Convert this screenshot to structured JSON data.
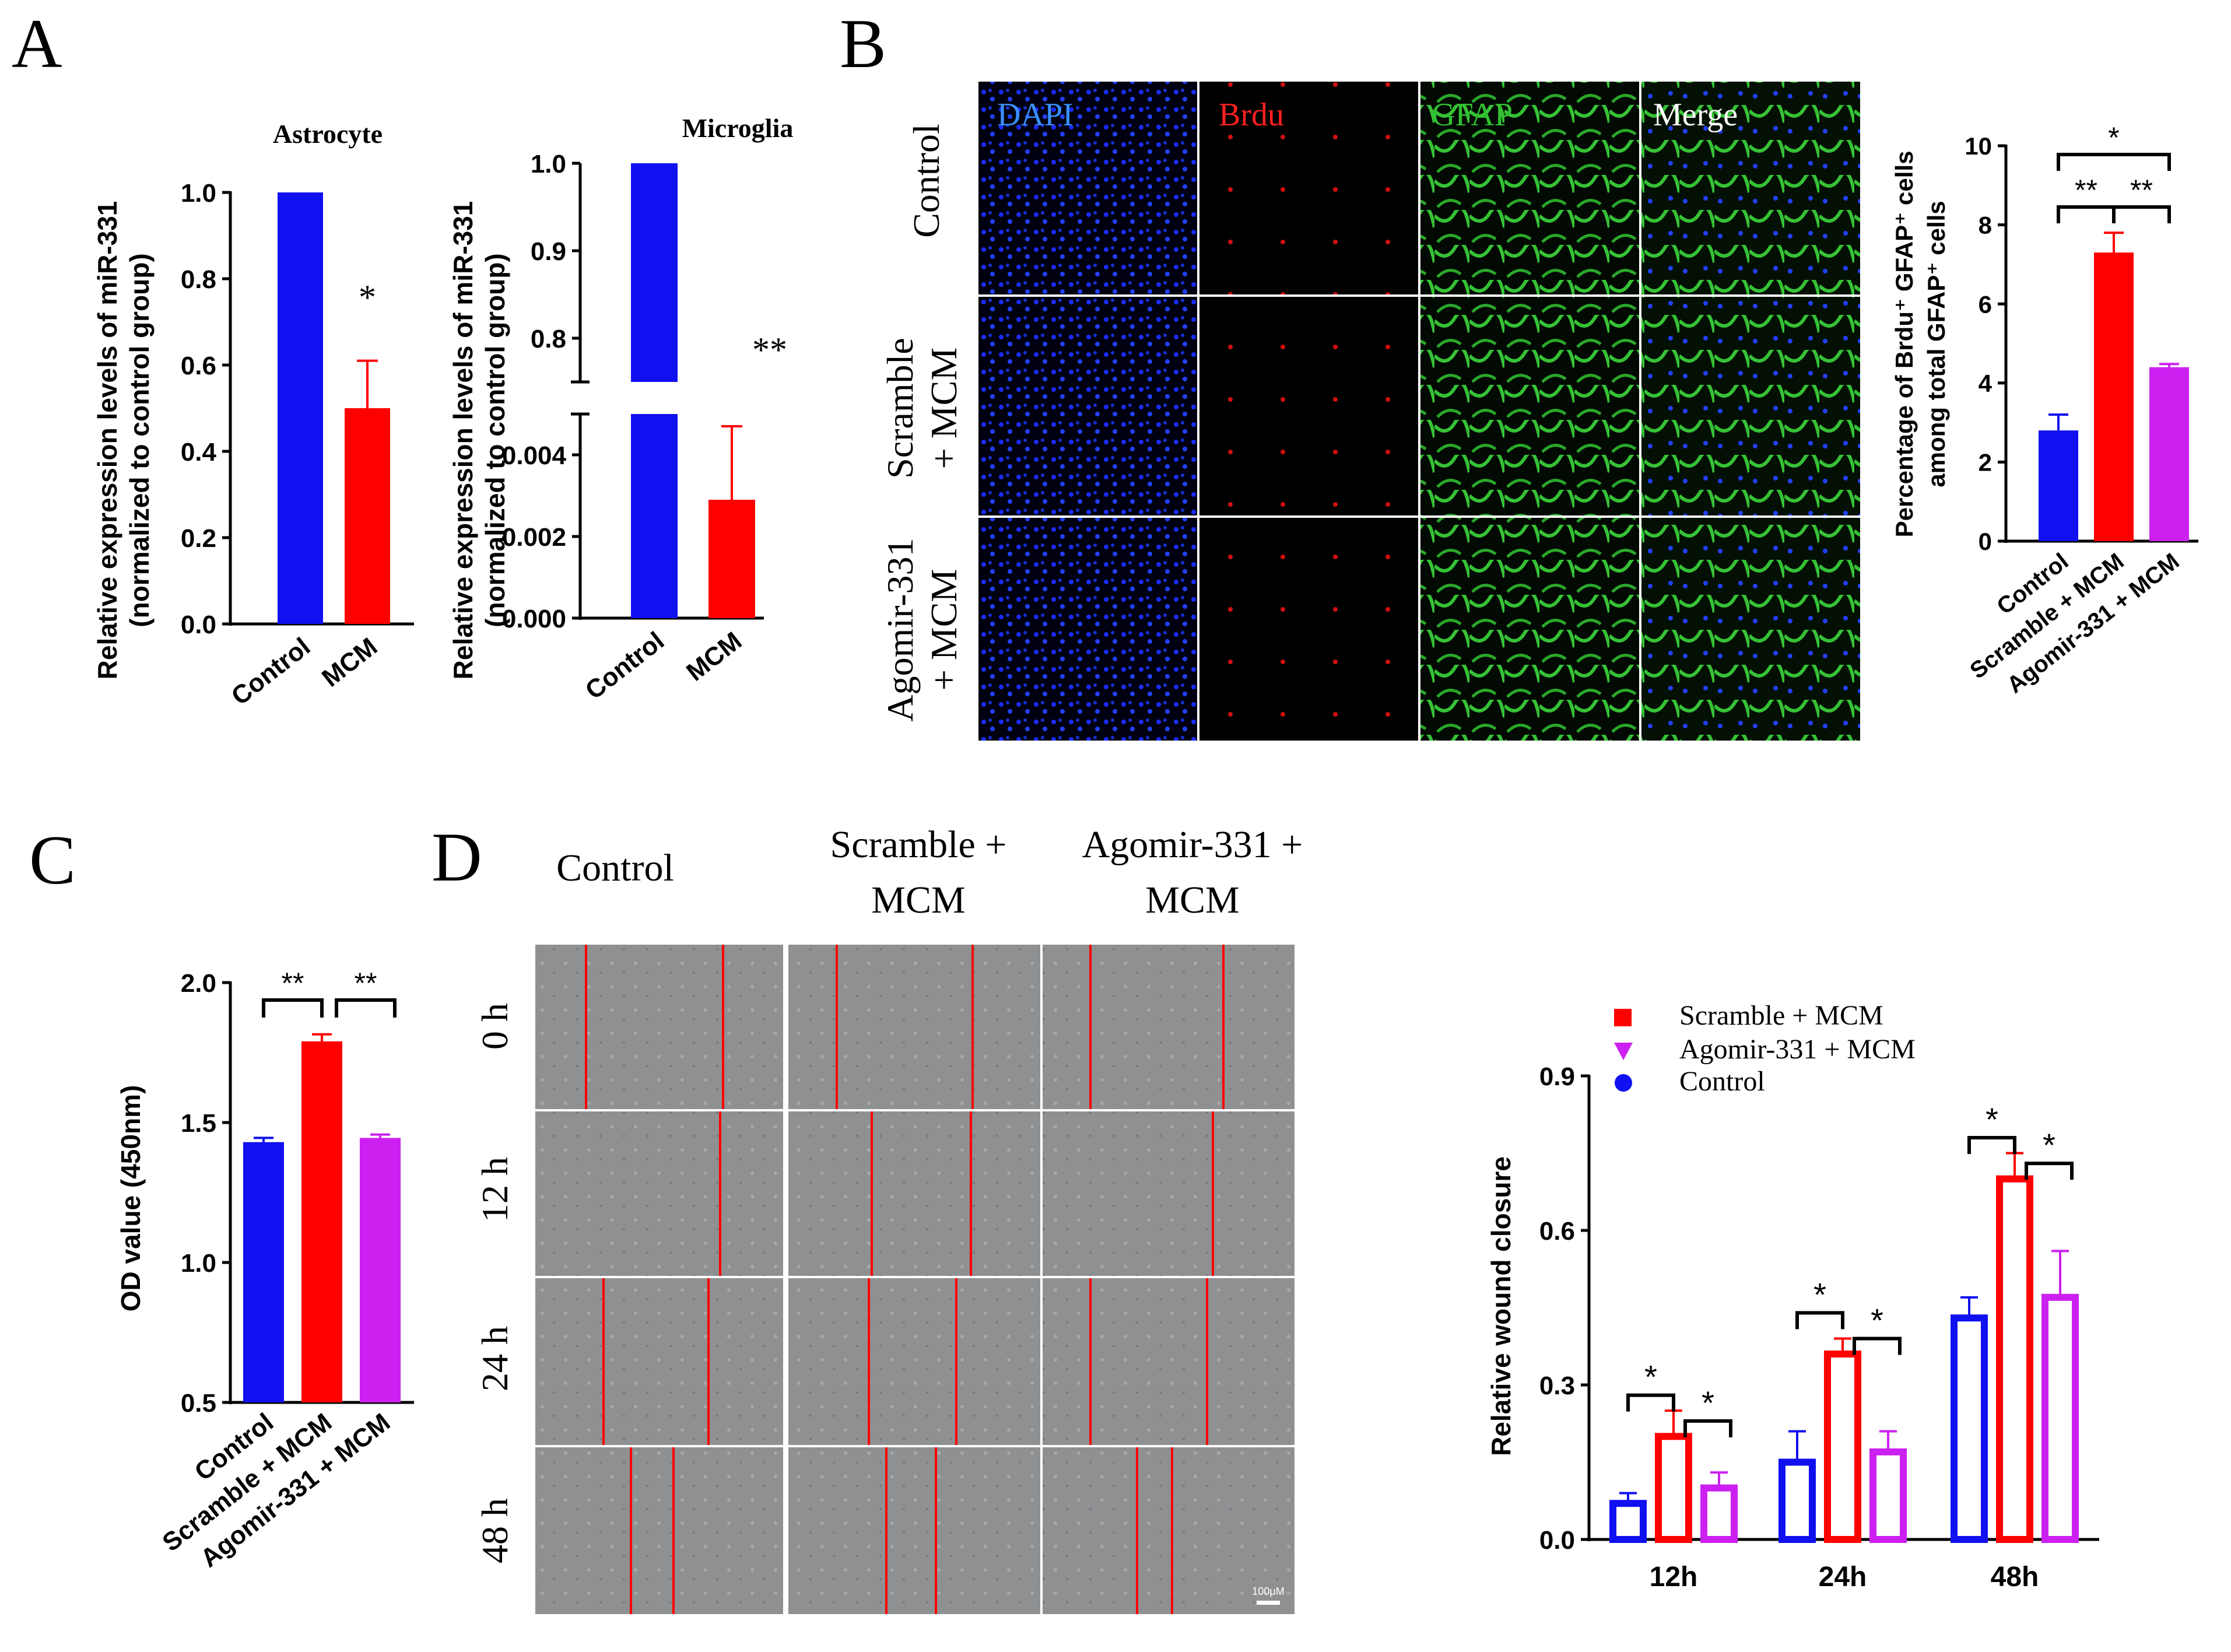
{
  "panel_labels": {
    "a": "A",
    "b": "B",
    "c": "C",
    "d": "D"
  },
  "colors": {
    "blue": "#1010F0",
    "red": "#FF0000",
    "magenta": "#CC20F0",
    "error_bar": "#ff3030"
  },
  "chart_data": [
    {
      "id": "A-astrocyte",
      "type": "bar",
      "title": "Astrocyte",
      "ylabel_line1": "Relative expression levels of miR-331",
      "ylabel_line2": "(normalized to control group)",
      "categories": [
        "Control",
        "MCM"
      ],
      "values": [
        1.0,
        0.5
      ],
      "errors": [
        0,
        0.11
      ],
      "colors": [
        "#1010F0",
        "#FF0000"
      ],
      "ylim": [
        0,
        1.0
      ],
      "yticks": [
        "0.0",
        "0.2",
        "0.4",
        "0.6",
        "0.8",
        "1.0"
      ],
      "significance": [
        "*"
      ]
    },
    {
      "id": "A-microglia",
      "type": "bar",
      "title": "Microglia",
      "ylabel_line1": "Relative expression levels of miR-331",
      "ylabel_line2": "(normalized to control group)",
      "categories": [
        "Control",
        "MCM"
      ],
      "values": [
        1.0,
        0.0029
      ],
      "errors": [
        0,
        0.0018
      ],
      "colors": [
        "#1010F0",
        "#FF0000"
      ],
      "broken_axis": {
        "lower": [
          0,
          0.005
        ],
        "upper": [
          0.75,
          1.0
        ]
      },
      "yticks_upper": [
        "0.8",
        "0.9",
        "1.0"
      ],
      "yticks_lower": [
        "0.000",
        "0.002",
        "0.004"
      ],
      "significance": [
        "**"
      ]
    },
    {
      "id": "B-brdu",
      "type": "bar",
      "ylabel_line1": "Percentage of Brdu⁺ GFAP⁺ cells",
      "ylabel_line2": "among total GFAP⁺ cells",
      "categories": [
        "Control",
        "Scramble + MCM",
        "Agomir-331 + MCM"
      ],
      "values": [
        2.8,
        7.3,
        4.4
      ],
      "errors": [
        0.4,
        0.5,
        0.08
      ],
      "colors": [
        "#1010F0",
        "#FF0000",
        "#CC20F0"
      ],
      "ylim": [
        0,
        10
      ],
      "yticks": [
        "0",
        "2",
        "4",
        "6",
        "8",
        "10"
      ],
      "significance": [
        "**",
        "**",
        "*"
      ]
    },
    {
      "id": "C-od",
      "type": "bar",
      "ylabel": "OD value (450nm)",
      "categories": [
        "Control",
        "Scramble + MCM",
        "Agomir-331 + MCM"
      ],
      "values": [
        1.43,
        1.79,
        1.445
      ],
      "errors": [
        0.015,
        0.025,
        0.012
      ],
      "colors": [
        "#1010F0",
        "#FF0000",
        "#CC20F0"
      ],
      "ylim": [
        0.5,
        2.0
      ],
      "yticks": [
        "0.5",
        "1.0",
        "1.5",
        "2.0"
      ],
      "significance": [
        "**",
        "**"
      ]
    },
    {
      "id": "D-wound",
      "type": "bar",
      "ylabel": "Relative wound closure",
      "categories": [
        "12h",
        "24h",
        "48h"
      ],
      "series": [
        {
          "name": "Control",
          "values": [
            0.07,
            0.15,
            0.43
          ],
          "errors": [
            0.02,
            0.06,
            0.04
          ],
          "color": "#1010F0"
        },
        {
          "name": "Scramble + MCM",
          "values": [
            0.2,
            0.36,
            0.7
          ],
          "errors": [
            0.05,
            0.03,
            0.05
          ],
          "color": "#FF0000"
        },
        {
          "name": "Agomir-331 + MCM",
          "values": [
            0.1,
            0.17,
            0.47
          ],
          "errors": [
            0.03,
            0.04,
            0.09
          ],
          "color": "#CC20F0"
        }
      ],
      "legend_order": [
        "Scramble + MCM",
        "Agomir-331 + MCM",
        "Control"
      ],
      "ylim": [
        0,
        0.9
      ],
      "yticks": [
        "0.0",
        "0.3",
        "0.6",
        "0.9"
      ],
      "significance": [
        "*",
        "*"
      ]
    }
  ],
  "micrographs_b": {
    "columns": [
      "DAPI",
      "Brdu",
      "GFAP",
      "Merge"
    ],
    "column_colors": [
      "#3A8FFF",
      "#FF2020",
      "#30C030",
      "#FFFFFF"
    ],
    "rows": [
      {
        "line1": "Control",
        "line2": ""
      },
      {
        "line1": "Scramble",
        "line2": "+ MCM"
      },
      {
        "line1": "Agomir-331",
        "line2": "+ MCM"
      }
    ]
  },
  "micrographs_d": {
    "columns": [
      {
        "line1": "Control",
        "line2": ""
      },
      {
        "line1": "Scramble  +",
        "line2": "MCM"
      },
      {
        "line1": "Agomir-331 +",
        "line2": "MCM"
      }
    ],
    "rows": [
      "0 h",
      "12 h",
      "24 h",
      "48 h"
    ],
    "scale_bar": "100μM"
  }
}
